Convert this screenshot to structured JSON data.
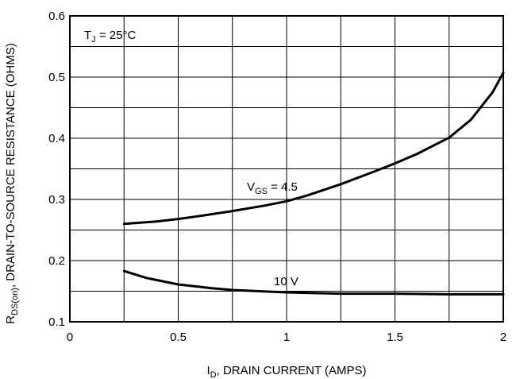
{
  "chart_data": {
    "type": "line",
    "ylabel": {
      "main": "R",
      "sub": "DS(on)",
      "rest": ", DRAIN-TO-SOURCE RESISTANCE (OHMS)"
    },
    "xlabel": {
      "main": "I",
      "sub": "D",
      "rest": ", DRAIN CURRENT (AMPS)"
    },
    "xlim": [
      0,
      2
    ],
    "ylim": [
      0.1,
      0.6
    ],
    "xticks": [
      0,
      0.5,
      1,
      1.5,
      2
    ],
    "xtick_labels": [
      "0",
      "0.5",
      "1",
      "1.5",
      "2"
    ],
    "yticks": [
      0.1,
      0.2,
      0.3,
      0.4,
      0.5,
      0.6
    ],
    "ytick_labels": [
      "0.1",
      "0.2",
      "0.3",
      "0.4",
      "0.5",
      "0.6"
    ],
    "x_minor_step": 0.25,
    "y_minor_step": 0.05,
    "grid": true,
    "condition_label": {
      "main": "T",
      "sub": "J",
      "rest": " =  25°C"
    },
    "series": [
      {
        "name": {
          "main": "V",
          "sub": "GS",
          "rest": " = 4.5"
        },
        "x": [
          0.25,
          0.4,
          0.5,
          0.6,
          0.75,
          0.9,
          1.0,
          1.1,
          1.25,
          1.4,
          1.5,
          1.6,
          1.75,
          1.85,
          1.95,
          2.0
        ],
        "y": [
          0.26,
          0.264,
          0.268,
          0.273,
          0.281,
          0.29,
          0.297,
          0.307,
          0.325,
          0.345,
          0.359,
          0.374,
          0.401,
          0.43,
          0.475,
          0.507
        ]
      },
      {
        "name": {
          "main": "10 V",
          "sub": "",
          "rest": ""
        },
        "x": [
          0.25,
          0.35,
          0.5,
          0.65,
          0.75,
          1.0,
          1.25,
          1.5,
          1.75,
          2.0
        ],
        "y": [
          0.183,
          0.172,
          0.161,
          0.155,
          0.152,
          0.148,
          0.146,
          0.146,
          0.145,
          0.145
        ]
      }
    ]
  }
}
